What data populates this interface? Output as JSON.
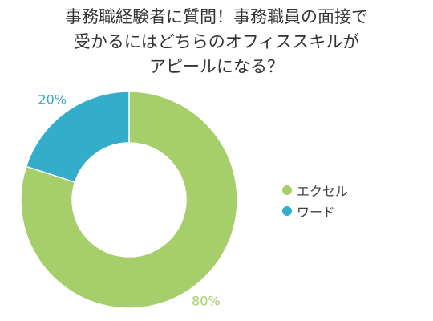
{
  "chart_data": {
    "type": "pie",
    "donut": true,
    "title_lines": [
      "事務職経験者に質問！事務職員の面接で",
      "受かるにはどちらのオフィススキルが",
      "アピールになる？"
    ],
    "categories": [
      "エクセル",
      "ワード"
    ],
    "values": [
      80,
      20
    ],
    "value_labels": [
      "80%",
      "20%"
    ],
    "colors": [
      "#a6ce6b",
      "#33adc9"
    ],
    "legend_position": "right"
  }
}
